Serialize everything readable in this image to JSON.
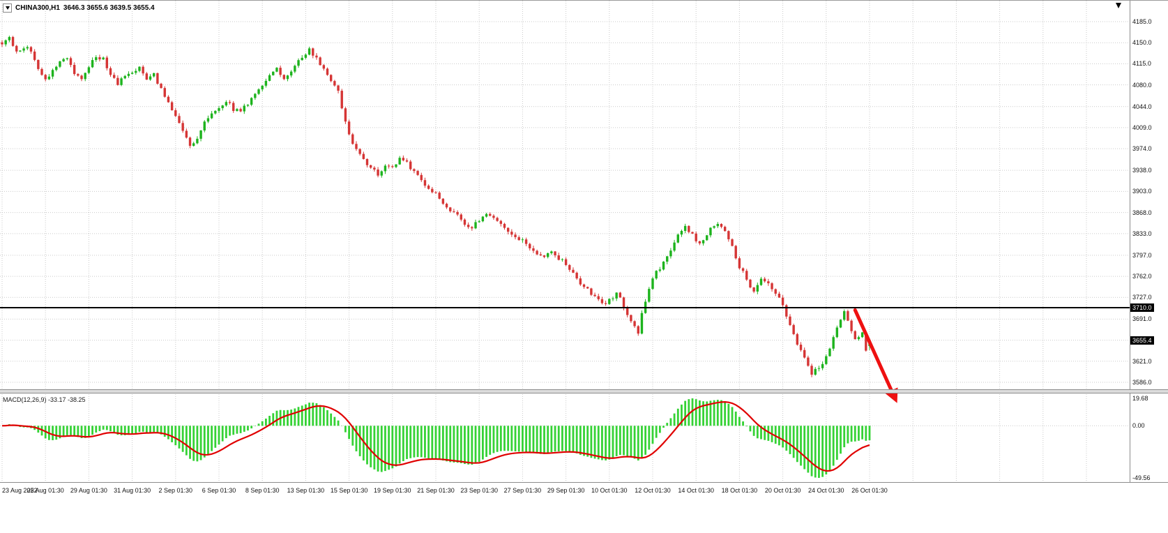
{
  "window": {
    "title_symbol": "CHINA300,H1",
    "title_ohlc": "3646.3 3655.6 3639.5 3655.4"
  },
  "indicator_label": "MACD(12,26,9) -33.17 -38.25",
  "annotations": {
    "hline": {
      "label": "3710.0",
      "price": 3710.0
    },
    "current_price": {
      "label": "3655.4",
      "price": 3655.4
    },
    "arrow": {
      "from": {
        "bar": 236,
        "price": 3706
      },
      "to": {
        "bar": 247,
        "price": 3560
      },
      "color": "#ee1111"
    }
  },
  "colors": {
    "bull": "#1db31d",
    "bear": "#d53535",
    "macd_hist": "#35d235",
    "macd_signal": "#e00000",
    "grid": "#c9c9c9",
    "hline": "#000000",
    "axis_text": "#101010"
  },
  "chart_data": {
    "type": "candlestick",
    "symbol": "CHINA300",
    "timeframe": "H1",
    "title": "CHINA300,H1 3646.3 3655.6 3639.5 3655.4",
    "ylim": [
      3586,
      4185
    ],
    "price_axis_ticks": [
      "4185.0",
      "4150.0",
      "4115.0",
      "4080.0",
      "4044.0",
      "4009.0",
      "3974.0",
      "3938.0",
      "3903.0",
      "3868.0",
      "3833.0",
      "3797.0",
      "3762.0",
      "3727.0",
      "3691.0",
      "3656.0",
      "3621.0",
      "3586.0"
    ],
    "macd_axis_ticks": [
      "19.68",
      "0.00",
      "-49.56"
    ],
    "x_ticks": [
      "23 Aug 2022",
      "25 Aug 01:30",
      "29 Aug 01:30",
      "31 Aug 01:30",
      "2 Sep 01:30",
      "6 Sep 01:30",
      "8 Sep 01:30",
      "13 Sep 01:30",
      "15 Sep 01:30",
      "19 Sep 01:30",
      "21 Sep 01:30",
      "23 Sep 01:30",
      "27 Sep 01:30",
      "29 Sep 01:30",
      "10 Oct 01:30",
      "12 Oct 01:30",
      "14 Oct 01:30",
      "18 Oct 01:30",
      "20 Oct 01:30",
      "24 Oct 01:30",
      "26 Oct 01:30"
    ],
    "bars_per_tick": 12,
    "candle_count": 241,
    "hline_price": 3710.0,
    "last_candle": {
      "open": 3646.3,
      "high": 3655.6,
      "low": 3639.5,
      "close": 3655.4
    },
    "indicator": {
      "name": "MACD",
      "params": [
        12,
        26,
        9
      ],
      "current_macd": -33.17,
      "current_signal": -38.25
    },
    "price_keyframes": [
      [
        0,
        4150
      ],
      [
        2,
        4160
      ],
      [
        4,
        4132
      ],
      [
        7,
        4146
      ],
      [
        10,
        4108
      ],
      [
        12,
        4088
      ],
      [
        14,
        4104
      ],
      [
        16,
        4122
      ],
      [
        18,
        4126
      ],
      [
        20,
        4100
      ],
      [
        22,
        4088
      ],
      [
        24,
        4108
      ],
      [
        26,
        4128
      ],
      [
        28,
        4122
      ],
      [
        30,
        4096
      ],
      [
        32,
        4082
      ],
      [
        34,
        4096
      ],
      [
        36,
        4100
      ],
      [
        38,
        4112
      ],
      [
        40,
        4090
      ],
      [
        42,
        4096
      ],
      [
        44,
        4072
      ],
      [
        46,
        4052
      ],
      [
        48,
        4030
      ],
      [
        50,
        4002
      ],
      [
        52,
        3980
      ],
      [
        54,
        3992
      ],
      [
        56,
        4016
      ],
      [
        58,
        4030
      ],
      [
        60,
        4042
      ],
      [
        62,
        4054
      ],
      [
        64,
        4040
      ],
      [
        66,
        4036
      ],
      [
        68,
        4050
      ],
      [
        70,
        4066
      ],
      [
        72,
        4080
      ],
      [
        74,
        4098
      ],
      [
        76,
        4106
      ],
      [
        78,
        4092
      ],
      [
        80,
        4104
      ],
      [
        82,
        4120
      ],
      [
        84,
        4132
      ],
      [
        85,
        4138
      ],
      [
        87,
        4124
      ],
      [
        89,
        4106
      ],
      [
        91,
        4088
      ],
      [
        93,
        4068
      ],
      [
        95,
        4020
      ],
      [
        96,
        3996
      ],
      [
        98,
        3970
      ],
      [
        100,
        3956
      ],
      [
        102,
        3944
      ],
      [
        104,
        3930
      ],
      [
        106,
        3946
      ],
      [
        108,
        3942
      ],
      [
        110,
        3958
      ],
      [
        112,
        3950
      ],
      [
        114,
        3936
      ],
      [
        116,
        3920
      ],
      [
        118,
        3908
      ],
      [
        120,
        3898
      ],
      [
        122,
        3884
      ],
      [
        124,
        3870
      ],
      [
        126,
        3862
      ],
      [
        128,
        3850
      ],
      [
        130,
        3842
      ],
      [
        132,
        3856
      ],
      [
        134,
        3868
      ],
      [
        136,
        3860
      ],
      [
        138,
        3846
      ],
      [
        140,
        3834
      ],
      [
        142,
        3826
      ],
      [
        144,
        3820
      ],
      [
        146,
        3810
      ],
      [
        148,
        3800
      ],
      [
        150,
        3796
      ],
      [
        152,
        3802
      ],
      [
        154,
        3792
      ],
      [
        156,
        3784
      ],
      [
        158,
        3766
      ],
      [
        160,
        3748
      ],
      [
        162,
        3740
      ],
      [
        164,
        3728
      ],
      [
        166,
        3714
      ],
      [
        168,
        3722
      ],
      [
        170,
        3735
      ],
      [
        172,
        3712
      ],
      [
        174,
        3690
      ],
      [
        176,
        3668
      ],
      [
        177,
        3698
      ],
      [
        179,
        3742
      ],
      [
        180,
        3760
      ],
      [
        182,
        3776
      ],
      [
        184,
        3795
      ],
      [
        186,
        3820
      ],
      [
        188,
        3838
      ],
      [
        189,
        3845
      ],
      [
        191,
        3830
      ],
      [
        193,
        3815
      ],
      [
        196,
        3840
      ],
      [
        198,
        3850
      ],
      [
        200,
        3835
      ],
      [
        202,
        3810
      ],
      [
        204,
        3778
      ],
      [
        206,
        3758
      ],
      [
        208,
        3735
      ],
      [
        210,
        3755
      ],
      [
        212,
        3748
      ],
      [
        214,
        3732
      ],
      [
        216,
        3715
      ],
      [
        218,
        3680
      ],
      [
        220,
        3650
      ],
      [
        222,
        3630
      ],
      [
        224,
        3602
      ],
      [
        226,
        3610
      ],
      [
        228,
        3628
      ],
      [
        230,
        3660
      ],
      [
        232,
        3692
      ],
      [
        233,
        3705
      ],
      [
        234,
        3688
      ],
      [
        236,
        3655
      ],
      [
        238,
        3668
      ],
      [
        239,
        3642
      ],
      [
        240,
        3655.4
      ]
    ]
  }
}
